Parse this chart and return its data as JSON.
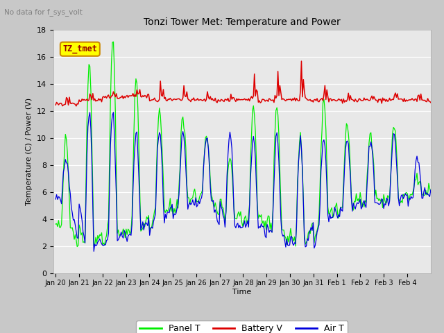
{
  "title": "Tonzi Tower Met: Temperature and Power",
  "subtitle": "No data for f_sys_volt",
  "ylabel": "Temperature (C) / Power (V)",
  "xlabel": "Time",
  "ylim": [
    0,
    18
  ],
  "yticks": [
    0,
    2,
    4,
    6,
    8,
    10,
    12,
    14,
    16,
    18
  ],
  "xtick_labels": [
    "Jan 20",
    "Jan 21",
    "Jan 22",
    "Jan 23",
    "Jan 24",
    "Jan 25",
    "Jan 26",
    "Jan 27",
    "Jan 28",
    "Jan 29",
    "Jan 30",
    "Jan 31",
    "Feb 1",
    "Feb 2",
    "Feb 3",
    "Feb 4"
  ],
  "legend_label": "TZ_tmet",
  "line_colors": {
    "panel": "#00ee00",
    "battery": "#dd0000",
    "air": "#0000dd"
  },
  "fig_bg": "#c8c8c8",
  "plot_bg": "#e8e8e8",
  "grid_color": "#ffffff"
}
